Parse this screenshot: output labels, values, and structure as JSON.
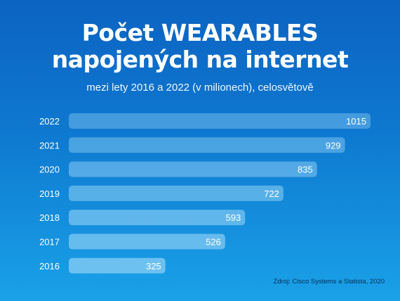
{
  "title_line1": "Počet WEARABLES",
  "title_line2": "napojených na internet",
  "subtitle": "mezi lety 2016 a 2022 (v milionech), celosvětově",
  "source": "Zdroj: Cisco Systems a Statista, 2020",
  "colors": {
    "background_top": "#0c63c2",
    "background_bottom": "#1aa2e8",
    "bar_fill": "#8fd0f5",
    "text": "#ffffff"
  },
  "chart_data": {
    "type": "bar",
    "orientation": "horizontal",
    "categories": [
      "2022",
      "2021",
      "2020",
      "2019",
      "2018",
      "2017",
      "2016"
    ],
    "values": [
      1015,
      929,
      835,
      722,
      593,
      526,
      325
    ],
    "title": "Počet WEARABLES napojených na internet",
    "subtitle": "mezi lety 2016 a 2022 (v milionech), celosvětově",
    "xlim": [
      0,
      1015
    ],
    "grid": false,
    "legend": "none",
    "data_labels": true
  }
}
